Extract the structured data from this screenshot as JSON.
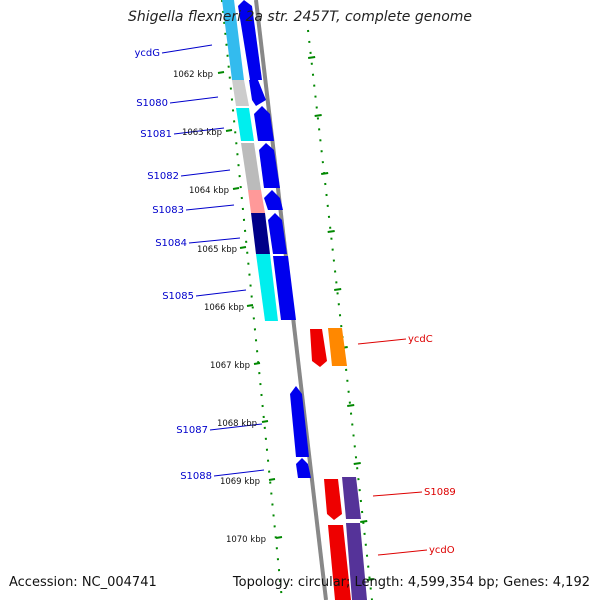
{
  "title": "Shigella flexneri 2a str. 2457T, complete genome",
  "footer": {
    "accession": "Accession: NC_004741",
    "summary": "Topology: circular; Length: 4,599,354 bp; Genes: 4,192"
  },
  "colors": {
    "backbone": "#888888",
    "tick": "#008800",
    "left_label": "#0000cc",
    "right_label": "#dd0000"
  },
  "ticks": [
    "1062 kbp",
    "1063 kbp",
    "1064 kbp",
    "1065 kbp",
    "1066 kbp",
    "1067 kbp",
    "1068 kbp",
    "1069 kbp",
    "1070 kbp"
  ],
  "left_genes": [
    {
      "label": "ycdG",
      "cds_color": "#33bbee"
    },
    {
      "label": "S1080",
      "cds_color": "#cccccc"
    },
    {
      "label": "S1081",
      "cds_color": "#00eeee"
    },
    {
      "label": "S1082",
      "cds_color": "#bbbbbb"
    },
    {
      "label": "S1083",
      "cds_color": "#ff9999"
    },
    {
      "label": "S1084",
      "cds_color": "#000088"
    },
    {
      "label": "S1085",
      "cds_color": "#00eeee"
    },
    {
      "label": "S1087",
      "cds_color": "#0000ee"
    },
    {
      "label": "S1088",
      "cds_color": "#0000ee"
    }
  ],
  "right_genes": [
    {
      "label": "ycdC",
      "cds_color": "#ff8800"
    },
    {
      "label": "S1089",
      "cds_color": "#553399"
    },
    {
      "label": "ycdO",
      "cds_color": "#553399"
    }
  ]
}
